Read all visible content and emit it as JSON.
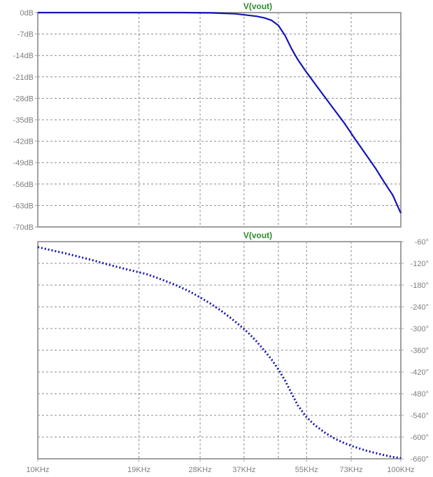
{
  "chart_data": [
    {
      "type": "line",
      "title": "V(vout)",
      "ylabel": "",
      "xlabel": "",
      "x_scale": "log",
      "xlim": [
        10000,
        100000
      ],
      "ylim": [
        -70,
        0
      ],
      "y_ticks": [
        0,
        -7,
        -14,
        -21,
        -28,
        -35,
        -42,
        -49,
        -56,
        -63,
        -70
      ],
      "y_tick_labels": [
        "0dB",
        "-7dB",
        "-14dB",
        "-21dB",
        "-28dB",
        "-35dB",
        "-42dB",
        "-49dB",
        "-56dB",
        "-63dB",
        "-70dB"
      ],
      "grid": true,
      "line_style": "solid",
      "color": "#1515b4",
      "series": [
        {
          "x": [
            10000,
            15000,
            20000,
            25000,
            30000,
            35000,
            40000,
            42000,
            44000,
            46000,
            48000,
            50000,
            52000,
            55000,
            60000,
            65000,
            70000,
            75000,
            80000,
            85000,
            90000,
            95000,
            100000
          ],
          "y": [
            0,
            0,
            0,
            0,
            -0.1,
            -0.4,
            -1.2,
            -1.7,
            -2.5,
            -4.2,
            -7.5,
            -11.8,
            -15.3,
            -19.5,
            -25.6,
            -31.1,
            -36.2,
            -41.5,
            -46.2,
            -50.7,
            -55.4,
            -59.6,
            -65.5
          ]
        }
      ]
    },
    {
      "type": "line",
      "title": "V(vout)",
      "ylabel": "",
      "xlabel": "",
      "x_scale": "log",
      "xlim": [
        10000,
        100000
      ],
      "ylim": [
        -660,
        -60
      ],
      "y_ticks": [
        -60,
        -120,
        -180,
        -240,
        -300,
        -360,
        -420,
        -480,
        -540,
        -600,
        -660
      ],
      "y_tick_labels": [
        "-60°",
        "-120°",
        "-180°",
        "-240°",
        "-300°",
        "-360°",
        "-420°",
        "-480°",
        "-540°",
        "-600°",
        "-660°"
      ],
      "x_ticks": [
        10000,
        19000,
        28000,
        37000,
        55000,
        73000,
        100000
      ],
      "x_tick_labels": [
        "10KHz",
        "19KHz",
        "28KHz",
        "37KHz",
        "55KHz",
        "73KHz",
        "100KHz"
      ],
      "grid": true,
      "line_style": "dotted",
      "color": "#1515b4",
      "series": [
        {
          "x": [
            10000,
            12000,
            14000,
            16000,
            18000,
            20000,
            22000,
            24000,
            26000,
            28000,
            30000,
            32000,
            34000,
            36000,
            38000,
            40000,
            42000,
            44000,
            46000,
            48000,
            50000,
            52000,
            55000,
            58000,
            62000,
            66000,
            70000,
            75000,
            80000,
            85000,
            90000,
            95000,
            100000
          ],
          "y": [
            -75,
            -93,
            -110,
            -126,
            -139,
            -150,
            -165,
            -180,
            -196,
            -214,
            -232,
            -251,
            -271,
            -291,
            -312,
            -335,
            -360,
            -385,
            -413,
            -444,
            -479,
            -512,
            -545,
            -567,
            -589,
            -605,
            -617,
            -628,
            -637,
            -644,
            -650,
            -655,
            -658
          ]
        }
      ]
    }
  ]
}
